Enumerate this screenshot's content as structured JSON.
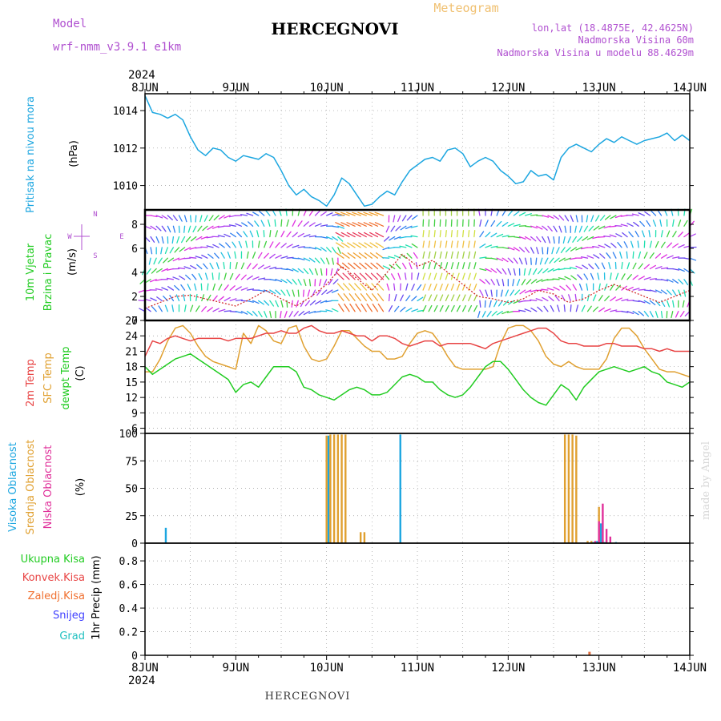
{
  "header": {
    "title": "HERCEGNOVI",
    "model_label": "Model",
    "model_value": "wrf-nmm_v3.9.1  e1km",
    "meteogram_label": "Meteogram",
    "lonlat": "lon,lat (18.4875E, 42.4625N)",
    "altitude": "Nadmorska Visina 60m",
    "model_altitude": "Nadmorska Visina u modelu 88.4629m"
  },
  "footer": {
    "title": "HERCEGNOVI",
    "credit": "made by Angel"
  },
  "time_axis": {
    "year": "2024",
    "days": [
      "8JUN",
      "9JUN",
      "10JUN",
      "11JUN",
      "12JUN",
      "13JUN",
      "14JUN"
    ]
  },
  "colors": {
    "pressure": "#1ca6e0",
    "temp2m": "#e84444",
    "sfc": "#e0a030",
    "dewpt": "#22cc22",
    "high_cloud": "#1ca6e0",
    "mid_cloud": "#e0a030",
    "low_cloud": "#e0309a",
    "model_text": "#b050d0",
    "meteogram_text": "#f0c070"
  },
  "chart_data": [
    {
      "type": "line",
      "panel": "pressure",
      "ylabel_1": "Pritisak na nivou mora",
      "ylabel_2": "(hPa)",
      "yticks": [
        1010,
        1012,
        1014
      ],
      "ylim": [
        1008.7,
        1014.9
      ],
      "xlim": [
        0,
        144
      ],
      "grid": true,
      "series": [
        {
          "x": [
            0,
            2,
            4,
            6,
            8,
            10,
            12,
            14,
            16,
            18,
            20,
            22,
            24,
            26,
            28,
            30,
            32,
            34,
            36,
            38,
            40,
            42,
            44,
            46,
            48,
            50,
            52,
            54,
            56,
            58,
            60,
            62,
            64,
            66,
            68,
            70,
            72,
            74,
            76,
            78,
            80,
            82,
            84,
            86,
            88,
            90,
            92,
            94,
            96,
            98,
            100,
            102,
            104,
            106,
            108,
            110,
            112,
            114,
            116,
            118,
            120,
            122,
            124,
            126,
            128,
            130,
            132,
            134,
            136,
            138,
            140,
            142,
            144
          ],
          "y": [
            1014.8,
            1013.9,
            1013.8,
            1013.6,
            1013.8,
            1013.5,
            1012.6,
            1011.9,
            1011.6,
            1012.0,
            1011.9,
            1011.5,
            1011.3,
            1011.6,
            1011.5,
            1011.4,
            1011.7,
            1011.5,
            1010.8,
            1010.0,
            1009.5,
            1009.8,
            1009.4,
            1009.2,
            1008.9,
            1009.5,
            1010.4,
            1010.1,
            1009.5,
            1008.9,
            1009.0,
            1009.4,
            1009.7,
            1009.5,
            1010.2,
            1010.8,
            1011.1,
            1011.4,
            1011.5,
            1011.3,
            1011.9,
            1012.0,
            1011.7,
            1011.0,
            1011.3,
            1011.5,
            1011.3,
            1010.8,
            1010.5,
            1010.1,
            1010.2,
            1010.8,
            1010.5,
            1010.6,
            1010.3,
            1011.5,
            1012.0,
            1012.2,
            1012.0,
            1011.8,
            1012.2,
            1012.5,
            1012.3,
            1012.6,
            1012.4,
            1012.2,
            1012.4,
            1012.5,
            1012.6,
            1012.8,
            1012.4,
            1012.7,
            1012.4
          ]
        }
      ]
    },
    {
      "type": "line",
      "panel": "wind",
      "ylabel_1": "10m Vjetar",
      "ylabel_2": "Brzina i Pravac",
      "ylabel_3": "(m/s)",
      "compass": "N ^ | > E  W < | > S",
      "yticks": [
        0,
        2,
        4,
        6,
        8
      ],
      "ylim": [
        0,
        9.2
      ],
      "xlim": [
        0,
        144
      ],
      "series": [
        {
          "name": "speed",
          "x": [
            0,
            4,
            8,
            12,
            16,
            20,
            24,
            28,
            32,
            36,
            40,
            44,
            48,
            52,
            56,
            60,
            64,
            68,
            72,
            76,
            80,
            84,
            88,
            92,
            96,
            100,
            104,
            108,
            112,
            116,
            120,
            124,
            128,
            132,
            136,
            140,
            144
          ],
          "y": [
            1,
            1.5,
            2,
            2.1,
            1.8,
            1.5,
            1.2,
            1.8,
            2.5,
            1.8,
            1.2,
            2,
            3,
            4.5,
            3.5,
            2.5,
            4,
            5.5,
            4.5,
            5,
            4,
            3,
            2,
            1.8,
            1.5,
            1.8,
            2.5,
            2.2,
            1.5,
            1.8,
            2.5,
            3,
            2.5,
            2,
            1.5,
            2,
            2.5
          ]
        }
      ]
    },
    {
      "type": "line",
      "panel": "temperature",
      "ylabel_1": "2m Temp",
      "ylabel_2": "SFC Temp",
      "ylabel_3": "dewpt Temp",
      "ylabel_4": "(C)",
      "yticks": [
        6,
        9,
        12,
        15,
        18,
        21,
        24,
        27
      ],
      "ylim": [
        5,
        27
      ],
      "xlim": [
        0,
        144
      ],
      "grid": true,
      "series": [
        {
          "name": "2m Temp",
          "x": [
            0,
            2,
            4,
            6,
            8,
            10,
            12,
            14,
            16,
            18,
            20,
            22,
            24,
            26,
            28,
            30,
            32,
            34,
            36,
            38,
            40,
            42,
            44,
            46,
            48,
            50,
            52,
            54,
            56,
            58,
            60,
            62,
            64,
            66,
            68,
            70,
            72,
            74,
            76,
            78,
            80,
            82,
            84,
            86,
            88,
            90,
            92,
            94,
            96,
            98,
            100,
            102,
            104,
            106,
            108,
            110,
            112,
            114,
            116,
            118,
            120,
            122,
            124,
            126,
            128,
            130,
            132,
            134,
            136,
            138,
            140,
            142,
            144
          ],
          "y": [
            20,
            23,
            22.5,
            23.5,
            24,
            23.5,
            23,
            23.5,
            23.5,
            23.5,
            23.5,
            23,
            23.5,
            23.5,
            23.5,
            24,
            24.5,
            24.5,
            25,
            24.5,
            24.5,
            25.5,
            26,
            25,
            24.5,
            24.5,
            25,
            24.5,
            24,
            24,
            23,
            24,
            24,
            23.5,
            22.5,
            22,
            22.5,
            23,
            23,
            22,
            22.5,
            22.5,
            22.5,
            22.5,
            22,
            21.5,
            22.5,
            23,
            23.5,
            24,
            24.5,
            25,
            25.5,
            25.5,
            24.5,
            23,
            22.5,
            22.5,
            22,
            22,
            22,
            22.5,
            22.5,
            22,
            22,
            22,
            21.5,
            21.5,
            21,
            21.5,
            21,
            21,
            21
          ]
        },
        {
          "name": "SFC Temp",
          "x": [
            0,
            2,
            4,
            6,
            8,
            10,
            12,
            14,
            16,
            18,
            20,
            22,
            24,
            26,
            28,
            30,
            32,
            34,
            36,
            38,
            40,
            42,
            44,
            46,
            48,
            50,
            52,
            54,
            56,
            58,
            60,
            62,
            64,
            66,
            68,
            70,
            72,
            74,
            76,
            78,
            80,
            82,
            84,
            86,
            88,
            90,
            92,
            94,
            96,
            98,
            100,
            102,
            104,
            106,
            108,
            110,
            112,
            114,
            116,
            118,
            120,
            122,
            124,
            126,
            128,
            130,
            132,
            134,
            136,
            138,
            140,
            142,
            144
          ],
          "y": [
            17,
            17,
            19.5,
            23,
            25.5,
            26,
            24.5,
            22,
            20,
            19,
            18.5,
            18,
            17.5,
            24.5,
            22.5,
            26,
            25,
            23,
            22.5,
            25.5,
            26,
            22,
            19.5,
            19,
            19.5,
            22,
            25,
            25,
            23.5,
            22,
            21,
            21,
            19.5,
            19.5,
            20,
            22.5,
            24.5,
            25,
            24.5,
            22.5,
            20,
            18,
            17.5,
            17.5,
            17.5,
            17.5,
            18,
            22.5,
            25.5,
            26,
            26,
            25,
            23,
            20,
            18.5,
            18,
            19,
            18,
            17.5,
            17.5,
            17.5,
            19.5,
            23.5,
            25.5,
            25.5,
            24,
            21.5,
            19.5,
            17.5,
            17,
            17,
            16.5,
            16
          ]
        },
        {
          "name": "dewpt Temp",
          "x": [
            0,
            2,
            4,
            6,
            8,
            10,
            12,
            14,
            16,
            18,
            20,
            22,
            24,
            26,
            28,
            30,
            32,
            34,
            36,
            38,
            40,
            42,
            44,
            46,
            48,
            50,
            52,
            54,
            56,
            58,
            60,
            62,
            64,
            66,
            68,
            70,
            72,
            74,
            76,
            78,
            80,
            82,
            84,
            86,
            88,
            90,
            92,
            94,
            96,
            98,
            100,
            102,
            104,
            106,
            108,
            110,
            112,
            114,
            116,
            118,
            120,
            122,
            124,
            126,
            128,
            130,
            132,
            134,
            136,
            138,
            140,
            142,
            144
          ],
          "y": [
            18,
            16.5,
            17.5,
            18.5,
            19.5,
            20,
            20.5,
            19.5,
            18.5,
            17.5,
            16.5,
            15.5,
            13,
            14.5,
            15,
            14,
            16,
            18,
            18,
            18,
            17,
            14,
            13.5,
            12.5,
            12,
            11.5,
            12.5,
            13.5,
            14,
            13.5,
            12.5,
            12.5,
            13,
            14.5,
            16,
            16.5,
            16,
            15,
            15,
            13.5,
            12.5,
            12,
            12.5,
            14,
            16,
            18,
            19,
            19,
            17.5,
            15.5,
            13.5,
            12,
            11,
            10.5,
            12.5,
            14.5,
            13.5,
            11.5,
            14,
            15.5,
            17,
            17.5,
            18,
            17.5,
            17,
            17.5,
            18,
            17,
            16.5,
            15,
            14.5,
            14,
            15
          ]
        }
      ]
    },
    {
      "type": "bar",
      "panel": "cloud",
      "ylabel_1": "Visoka Oblacnost",
      "ylabel_2": "Srednja Oblacnost",
      "ylabel_3": "Niska Oblacnost",
      "ylabel_4": "(%)",
      "yticks": [
        0,
        25,
        50,
        75,
        100
      ],
      "ylim": [
        0,
        100
      ],
      "xlim": [
        0,
        144
      ],
      "grid": true,
      "series": [
        {
          "name": "high",
          "x": [
            5.5,
            48.5,
            67.5,
            118.5,
            119.5,
            120.5,
            121.5,
            124.5
          ],
          "values": [
            14,
            98,
            99,
            1,
            2,
            18,
            1,
            1
          ]
        },
        {
          "name": "mid",
          "x": [
            48,
            49,
            50,
            51,
            52,
            53,
            57,
            58,
            111,
            112,
            113,
            114,
            117,
            118,
            120,
            121,
            122
          ],
          "values": [
            98,
            99,
            99,
            99,
            99,
            99,
            10,
            10,
            99,
            99,
            99,
            98,
            2,
            2,
            33,
            3,
            3
          ]
        },
        {
          "name": "low",
          "x": [
            119,
            120,
            121,
            122,
            123
          ],
          "values": [
            2,
            20,
            36,
            13,
            6
          ]
        }
      ]
    },
    {
      "type": "bar",
      "panel": "precip",
      "ylabel": "1hr Precip (mm)",
      "legend": [
        "Ukupna Kisa",
        "Konvek.Kisa",
        "Zaledj.Kisa",
        "Snijeg",
        "Grad"
      ],
      "legend_colors": [
        "#22cc22",
        "#e84444",
        "#f07030",
        "#4040ff",
        "#20c0c0"
      ],
      "yticks": [
        0,
        0.2,
        0.4,
        0.6,
        0.8
      ],
      "ylim": [
        0,
        0.95
      ],
      "xlim": [
        0,
        144
      ],
      "grid": true,
      "series": [
        {
          "name": "Ukupna Kisa",
          "x": [
            117.5
          ],
          "values": [
            0.03
          ]
        }
      ]
    }
  ]
}
